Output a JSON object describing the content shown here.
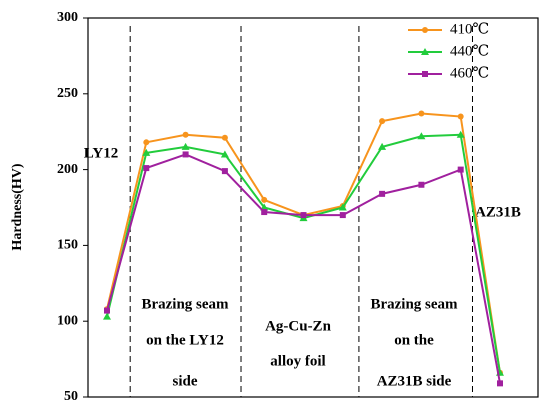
{
  "chart_data": {
    "type": "line",
    "y_label": "Hardness(HV)",
    "categories": [
      null,
      null,
      null,
      null,
      null,
      null,
      null,
      null,
      null,
      null,
      null
    ],
    "series": [
      {
        "name": "410℃",
        "color": "#f7941d",
        "marker": "circle",
        "values": [
          108,
          218,
          223,
          221,
          180,
          170,
          176,
          232,
          237,
          235,
          66
        ]
      },
      {
        "name": "440℃",
        "color": "#22cc3c",
        "marker": "triangle",
        "values": [
          103,
          211,
          215,
          210,
          175,
          168,
          175,
          215,
          222,
          223,
          66
        ]
      },
      {
        "name": "460℃",
        "color": "#a0209e",
        "marker": "square",
        "values": [
          107,
          201,
          210,
          199,
          172,
          170,
          170,
          184,
          190,
          200,
          59
        ]
      }
    ],
    "ylim": [
      50,
      300
    ],
    "yticks": [
      50,
      100,
      150,
      200,
      250,
      300
    ],
    "legend": "upper right",
    "annotations": [
      "LY12",
      "AZ31B"
    ],
    "regions": [
      {
        "lines": [
          "Brazing seam",
          "on the LY12",
          "side"
        ]
      },
      {
        "lines": [
          "Ag-Cu-Zn",
          "alloy foil"
        ]
      },
      {
        "lines": [
          "Brazing seam",
          "on the",
          "AZ31B side"
        ]
      }
    ]
  }
}
